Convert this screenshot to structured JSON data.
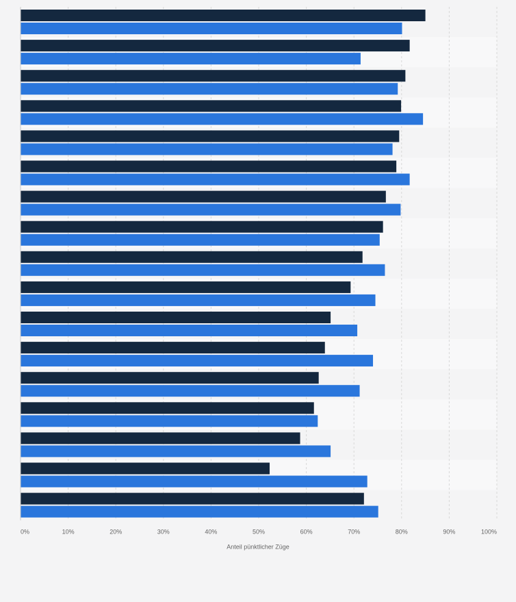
{
  "colors": {
    "background": "#f4f4f5",
    "band_alt": "#f8f8f9",
    "series_dark": "#14283f",
    "series_blue": "#2a76dc",
    "grid": "#d8d8d8",
    "axis_text": "#666666"
  },
  "chart_data": {
    "type": "bar",
    "orientation": "horizontal",
    "categories": [
      "",
      "",
      "",
      "",
      "",
      "",
      "",
      "",
      "",
      "",
      "",
      "",
      "",
      "",
      "",
      "",
      ""
    ],
    "series": [
      {
        "values": [
          85,
          81.7,
          80.8,
          79.9,
          79.5,
          78.9,
          76.7,
          76.1,
          71.8,
          69.3,
          65.1,
          63.9,
          62.6,
          61.6,
          58.7,
          52.3,
          72.1
        ]
      },
      {
        "values": [
          80.1,
          71.4,
          79.2,
          84.5,
          78.1,
          81.7,
          79.8,
          75.4,
          76.5,
          74.5,
          70.7,
          74.0,
          71.2,
          62.4,
          65.1,
          72.8,
          75.1
        ]
      }
    ],
    "xlim": [
      0,
      100
    ],
    "xticks": [
      "0%",
      "10%",
      "20%",
      "30%",
      "40%",
      "50%",
      "60%",
      "70%",
      "80%",
      "90%",
      "100%"
    ],
    "xlabel": "Anteil pünktlicher Züge",
    "grid": "vertical dashed",
    "legend": "none"
  }
}
